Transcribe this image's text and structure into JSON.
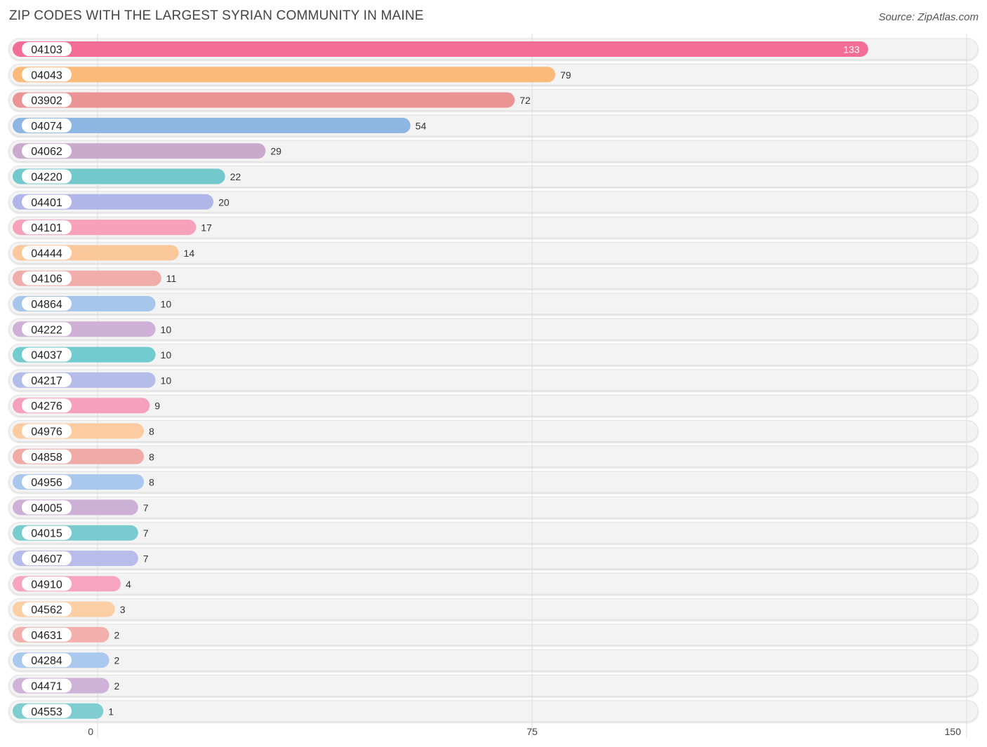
{
  "header": {
    "title": "ZIP CODES WITH THE LARGEST SYRIAN COMMUNITY IN MAINE",
    "source": "Source: ZipAtlas.com"
  },
  "chart_data": {
    "type": "bar",
    "orientation": "horizontal",
    "title": "ZIP CODES WITH THE LARGEST SYRIAN COMMUNITY IN MAINE",
    "xlabel": "",
    "ylabel": "",
    "xlim": [
      0,
      150
    ],
    "ticks": [
      0,
      75,
      150
    ],
    "grid": true,
    "categories": [
      "04103",
      "04043",
      "03902",
      "04074",
      "04062",
      "04220",
      "04401",
      "04101",
      "04444",
      "04106",
      "04864",
      "04222",
      "04037",
      "04217",
      "04276",
      "04976",
      "04858",
      "04956",
      "04005",
      "04015",
      "04607",
      "04910",
      "04562",
      "04631",
      "04284",
      "04471",
      "04553"
    ],
    "values": [
      133,
      79,
      72,
      54,
      29,
      22,
      20,
      17,
      14,
      11,
      10,
      10,
      10,
      10,
      9,
      8,
      8,
      8,
      7,
      7,
      7,
      4,
      3,
      2,
      2,
      2,
      1
    ],
    "colors": [
      "#f46d96",
      "#fbb97a",
      "#ea9594",
      "#8eb6e3",
      "#c9a9cc",
      "#73c8cc",
      "#b0b6e8",
      "#f7a1bb",
      "#fbc89c",
      "#f0ada9",
      "#a7c6ec",
      "#cfb0d6",
      "#72cbcf",
      "#b4bcea",
      "#f6a0bd",
      "#fccb9f",
      "#f0aba7",
      "#a9c6ed",
      "#cdb0d5",
      "#78cbcf",
      "#b7bceb",
      "#f7a4c0",
      "#fccea3",
      "#f1b0ac",
      "#abc8ee",
      "#ceb2d7",
      "#7fcdd1"
    ]
  }
}
